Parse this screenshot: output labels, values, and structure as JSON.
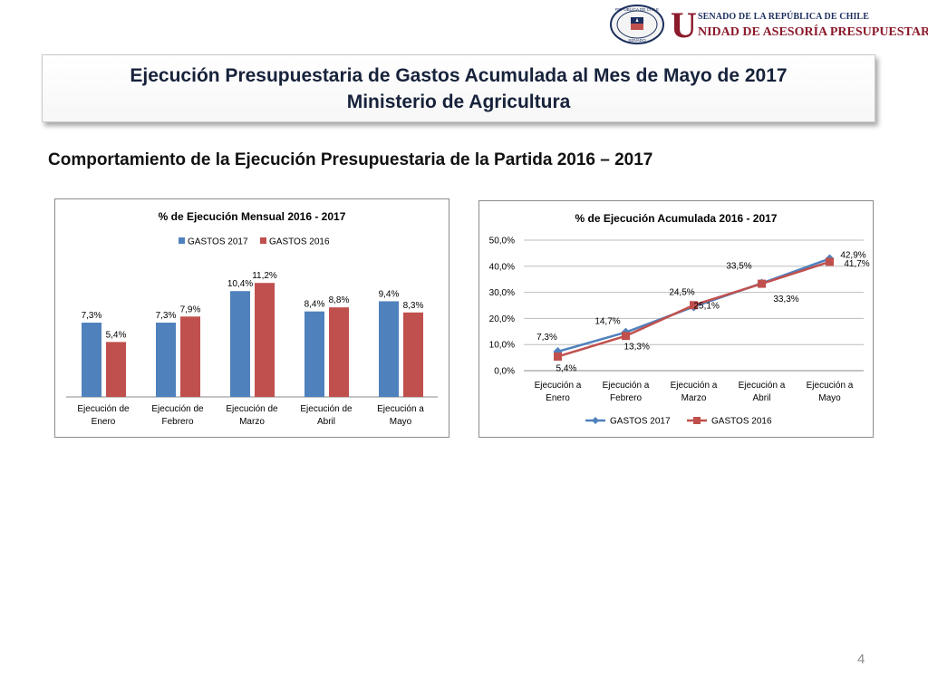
{
  "header": {
    "logo_small": "SENADO DE LA REPÚBLICA DE CHILE",
    "logo_initial": "U",
    "logo_main": "NIDAD DE ASESORÍA PRESUPUESTARIA",
    "seal_text_top": "REPÚBLICA DE CHILE",
    "seal_text_bottom": "SENADO"
  },
  "title": {
    "line1": "Ejecución Presupuestaria de Gastos Acumulada al Mes de Mayo de 2017",
    "line2": "Ministerio de Agricultura"
  },
  "subtitle": "Comportamiento de la Ejecución Presupuestaria de la Partida 2016 – 2017",
  "page_number": "4",
  "colors": {
    "gastos2017": "#4f81bd",
    "gastos2016": "#c0504d"
  },
  "chart_data": [
    {
      "type": "bar",
      "title": "% de Ejecución Mensual 2016 - 2017",
      "legend_position": "top",
      "categories": [
        [
          "Ejecución de",
          "Enero"
        ],
        [
          "Ejecución de",
          "Febrero"
        ],
        [
          "Ejecución de",
          "Marzo"
        ],
        [
          "Ejecución de",
          "Abril"
        ],
        [
          "Ejecución a",
          "Mayo"
        ]
      ],
      "series": [
        {
          "name": "GASTOS 2017",
          "color": "#4f81bd",
          "values": [
            7.3,
            7.3,
            10.4,
            8.4,
            9.4
          ],
          "labels": [
            "7,3%",
            "7,3%",
            "10,4%",
            "8,4%",
            "9,4%"
          ]
        },
        {
          "name": "GASTOS 2016",
          "color": "#c0504d",
          "values": [
            5.4,
            7.9,
            11.2,
            8.8,
            8.3
          ],
          "labels": [
            "5,4%",
            "7,9%",
            "11,2%",
            "8,8%",
            "8,3%"
          ]
        }
      ],
      "ylim": [
        0,
        13
      ],
      "grid": false
    },
    {
      "type": "line",
      "title": "% de Ejecución Acumulada 2016 - 2017",
      "legend_position": "bottom",
      "categories": [
        [
          "Ejecución a",
          "Enero"
        ],
        [
          "Ejecución a",
          "Febrero"
        ],
        [
          "Ejecución a",
          "Marzo"
        ],
        [
          "Ejecución a",
          "Abril"
        ],
        [
          "Ejecución a",
          "Mayo"
        ]
      ],
      "yticks": [
        "0,0%",
        "10,0%",
        "20,0%",
        "30,0%",
        "40,0%",
        "50,0%"
      ],
      "ylim": [
        0,
        50
      ],
      "grid": true,
      "series": [
        {
          "name": "GASTOS 2017",
          "color": "#4f81bd",
          "marker": "diamond",
          "values": [
            7.3,
            14.7,
            24.5,
            33.5,
            42.9
          ],
          "labels": [
            "7,3%",
            "14,7%",
            "24,5%",
            "33,5%",
            "42,9%"
          ]
        },
        {
          "name": "GASTOS 2016",
          "color": "#c0504d",
          "marker": "square",
          "values": [
            5.4,
            13.3,
            25.1,
            33.3,
            41.7
          ],
          "labels": [
            "5,4%",
            "13,3%",
            "25,1%",
            "33,3%",
            "41,7%"
          ]
        }
      ]
    }
  ]
}
